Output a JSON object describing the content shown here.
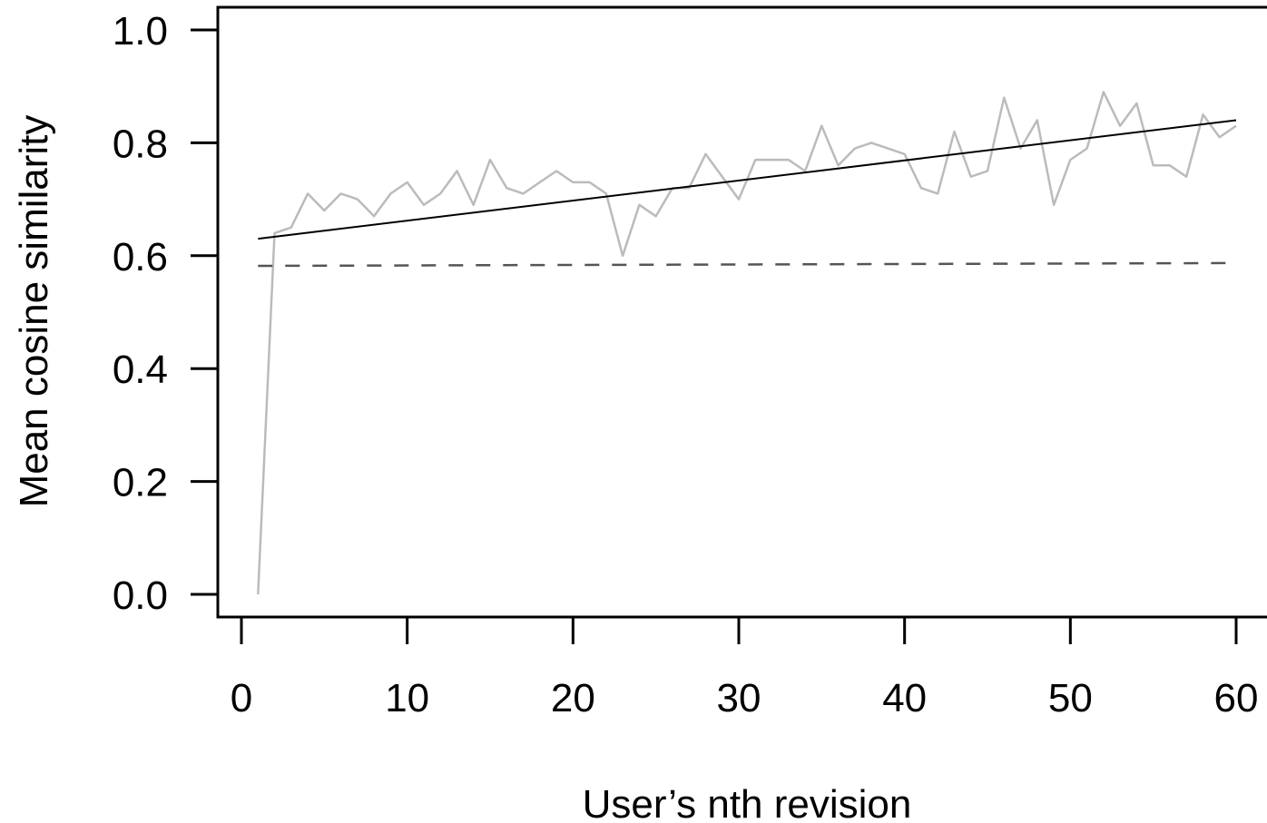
{
  "chart_data": {
    "type": "line",
    "title": "",
    "xlabel": "User’s nth revision",
    "ylabel": "Mean cosine similarity",
    "xlim": [
      0,
      60
    ],
    "ylim": [
      0.0,
      1.0
    ],
    "x_ticks": [
      0,
      10,
      20,
      30,
      40,
      50,
      60
    ],
    "x_tick_labels": [
      "0",
      "10",
      "20",
      "30",
      "40",
      "50",
      "60"
    ],
    "y_ticks": [
      0.0,
      0.2,
      0.4,
      0.6,
      0.8,
      1.0
    ],
    "y_tick_labels": [
      "0.0",
      "0.2",
      "0.4",
      "0.6",
      "0.8",
      "1.0"
    ],
    "grid": false,
    "legend": "none",
    "series": [
      {
        "style": "solid",
        "color": "#bbbbbb",
        "x": [
          1,
          2,
          3,
          4,
          5,
          6,
          7,
          8,
          9,
          10,
          11,
          12,
          13,
          14,
          15,
          16,
          17,
          18,
          19,
          20,
          21,
          22,
          23,
          24,
          25,
          26,
          27,
          28,
          29,
          30,
          31,
          32,
          33,
          34,
          35,
          36,
          37,
          38,
          39,
          40,
          41,
          42,
          43,
          44,
          45,
          46,
          47,
          48,
          49,
          50,
          51,
          52,
          53,
          54,
          55,
          56,
          57,
          58,
          59,
          60
        ],
        "values": [
          0.0,
          0.64,
          0.65,
          0.71,
          0.68,
          0.71,
          0.7,
          0.67,
          0.71,
          0.73,
          0.69,
          0.71,
          0.75,
          0.69,
          0.77,
          0.72,
          0.71,
          0.73,
          0.75,
          0.73,
          0.73,
          0.71,
          0.6,
          0.69,
          0.67,
          0.72,
          0.72,
          0.78,
          0.74,
          0.7,
          0.77,
          0.77,
          0.77,
          0.75,
          0.83,
          0.76,
          0.79,
          0.8,
          0.79,
          0.78,
          0.72,
          0.71,
          0.82,
          0.74,
          0.75,
          0.88,
          0.79,
          0.84,
          0.69,
          0.77,
          0.79,
          0.89,
          0.83,
          0.87,
          0.76,
          0.76,
          0.74,
          0.85,
          0.81,
          0.83
        ]
      },
      {
        "style": "solid",
        "color": "#000000",
        "x": [
          1,
          60
        ],
        "values": [
          0.63,
          0.84
        ]
      },
      {
        "style": "dashed",
        "color": "#555555",
        "x": [
          1,
          60
        ],
        "values": [
          0.582,
          0.587
        ]
      }
    ]
  }
}
